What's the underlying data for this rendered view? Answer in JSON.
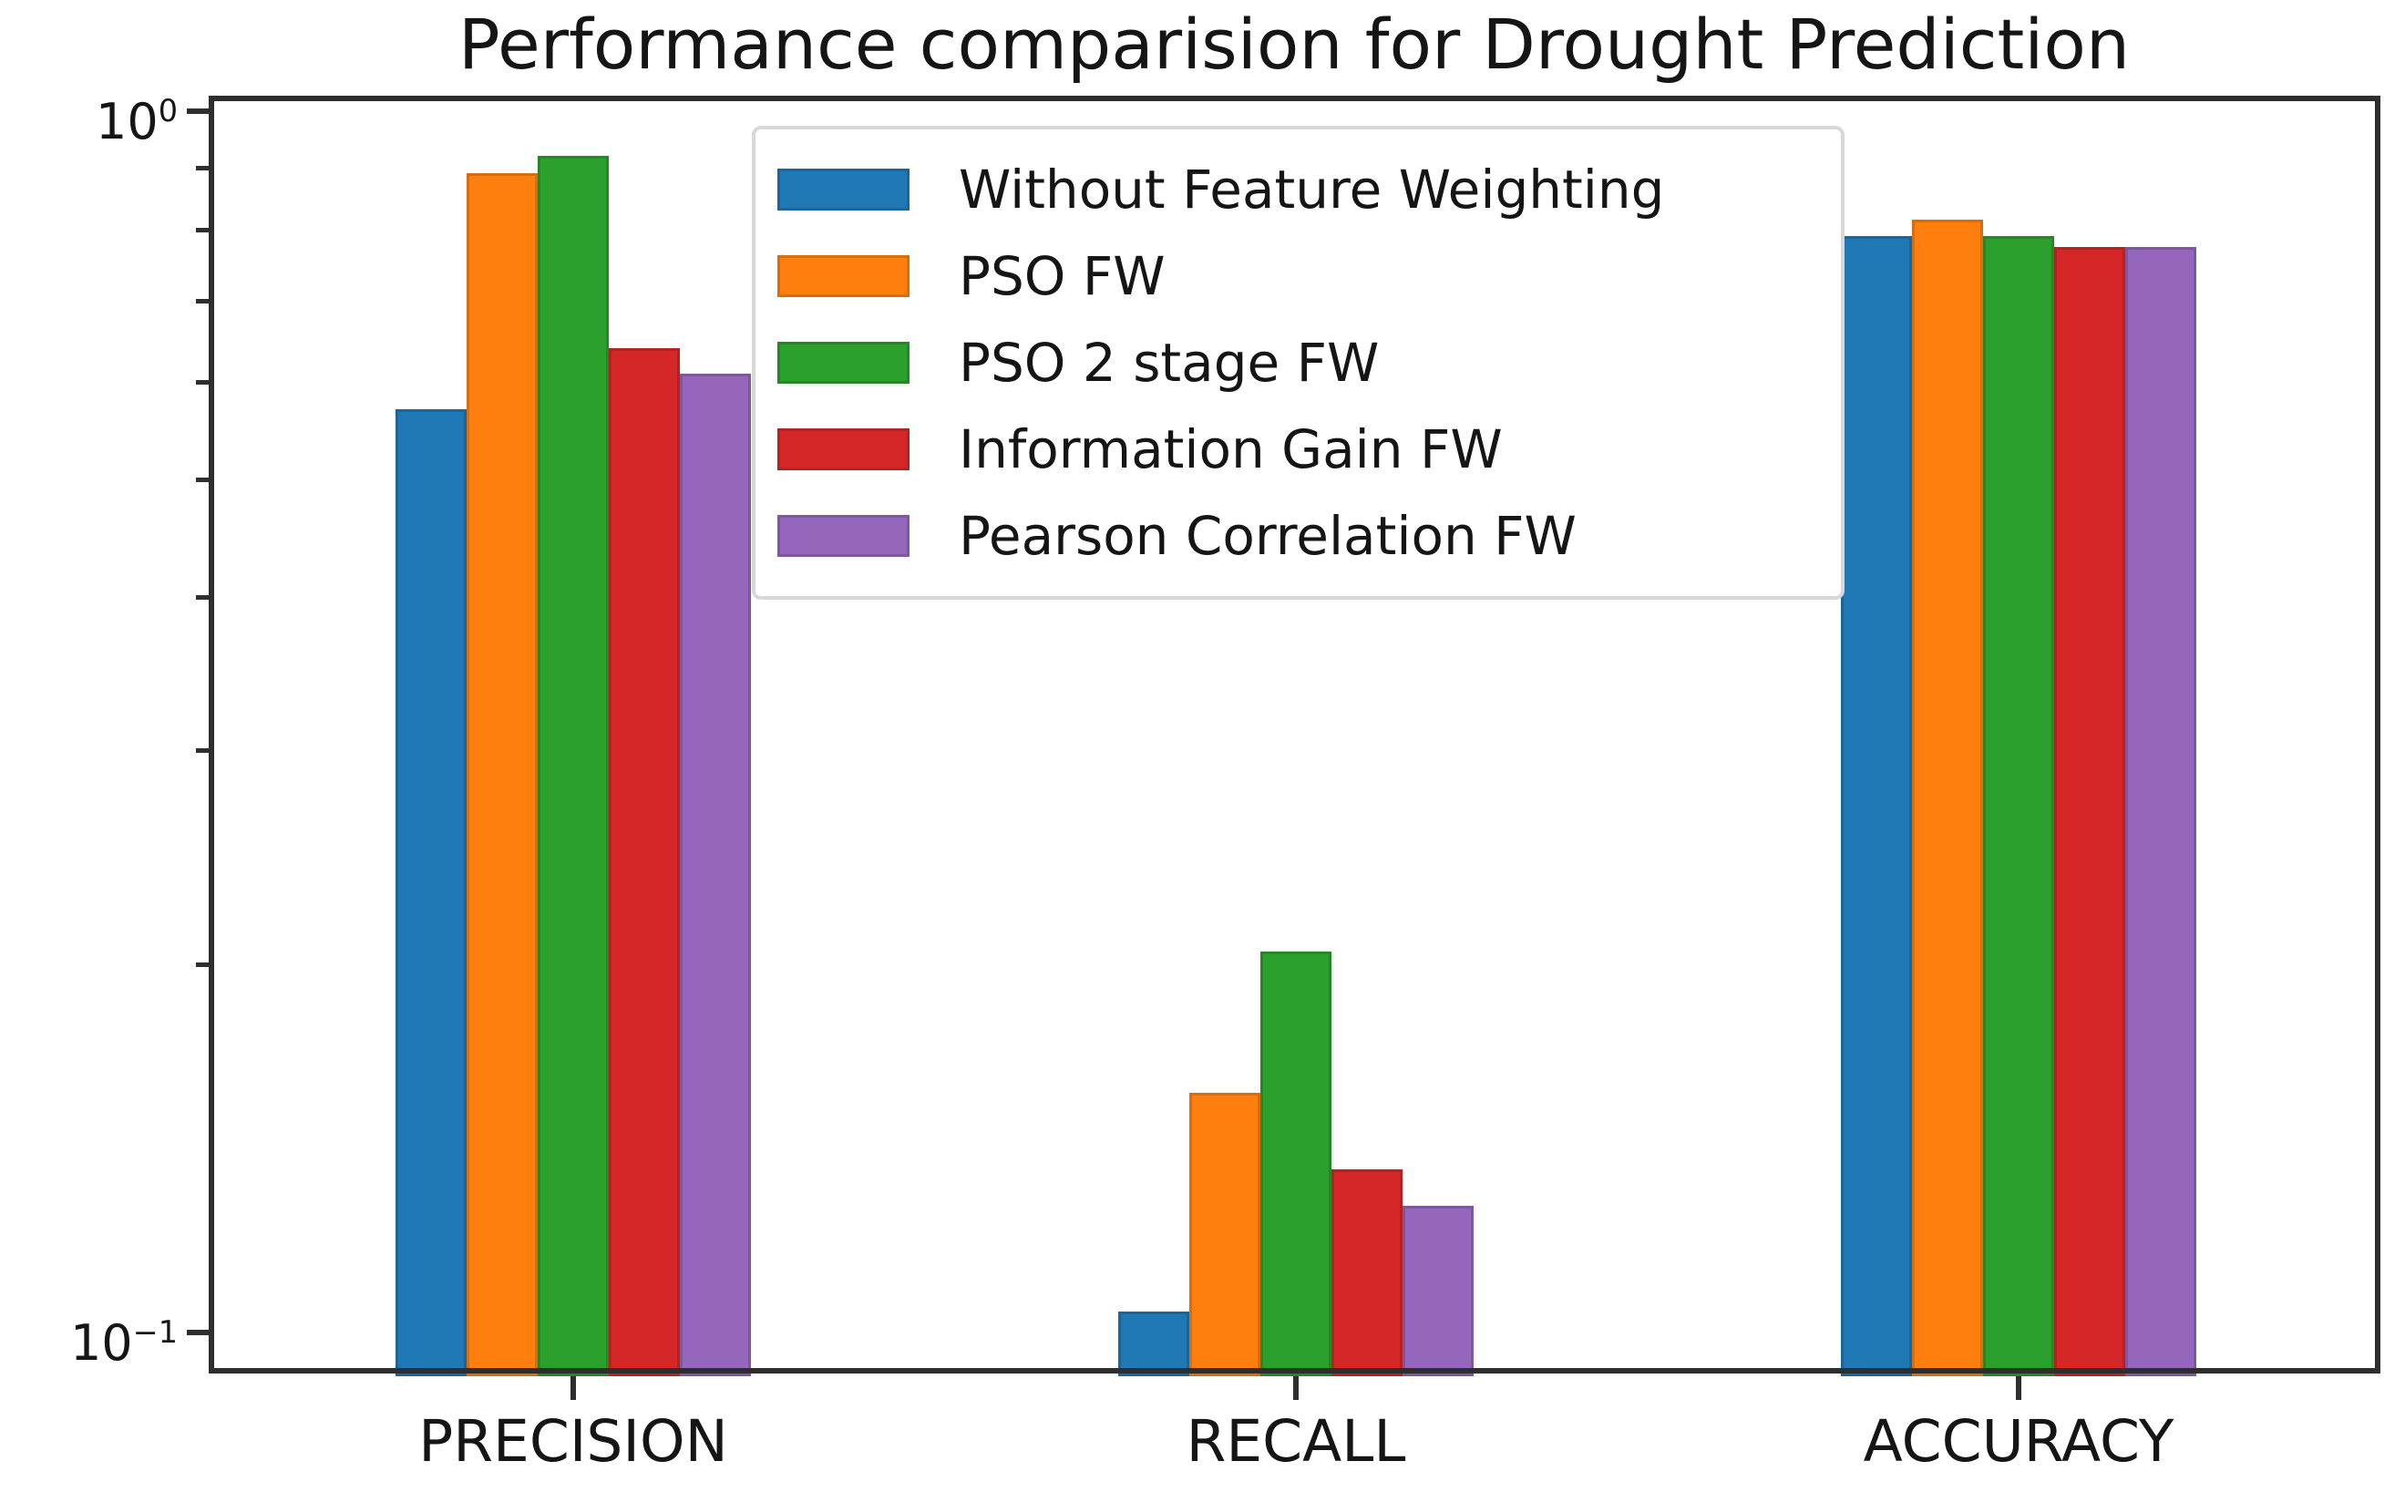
{
  "figure": {
    "title": "Performance comparision for Drought Prediction",
    "background_color": "#ffffff",
    "spine_color": "#2e2e2e",
    "text_color": "#151515"
  },
  "axes": {
    "y_scale": "log",
    "ylim": [
      0.0925,
      1.025
    ],
    "y_major_ticks": [
      {
        "mantissa": "10",
        "exponent": "0",
        "value": 1
      },
      {
        "mantissa": "10",
        "exponent": "−1",
        "value": 0.1
      }
    ],
    "y_minor_tick_values": [
      0.9,
      0.8,
      0.7,
      0.6,
      0.5,
      0.4,
      0.3,
      0.2
    ],
    "x_tick_labels": [
      "PRECISION",
      "RECALL",
      "ACCURACY"
    ],
    "grid": false
  },
  "chart_data": {
    "type": "bar",
    "title": "Performance comparision for Drought Prediction",
    "categories": [
      "PRECISION",
      "RECALL",
      "ACCURACY"
    ],
    "series": [
      {
        "name": "Without Feature Weighting",
        "color": "#1f77b4",
        "values": [
          0.57,
          0.104,
          0.79
        ]
      },
      {
        "name": "PSO FW",
        "color": "#ff7f0e",
        "values": [
          0.89,
          0.157,
          0.815
        ]
      },
      {
        "name": "PSO 2 stage FW",
        "color": "#2ca02c",
        "values": [
          0.92,
          0.205,
          0.79
        ]
      },
      {
        "name": "Information Gain FW",
        "color": "#d62728",
        "values": [
          0.64,
          0.136,
          0.775
        ]
      },
      {
        "name": "Pearson Correlation FW",
        "color": "#9467bd",
        "values": [
          0.61,
          0.127,
          0.775
        ]
      }
    ],
    "xlabel": "",
    "ylabel": "",
    "y_scale": "log",
    "ylim": [
      0.0925,
      1.025
    ],
    "legend_position": "upper left inside",
    "grid": false
  }
}
